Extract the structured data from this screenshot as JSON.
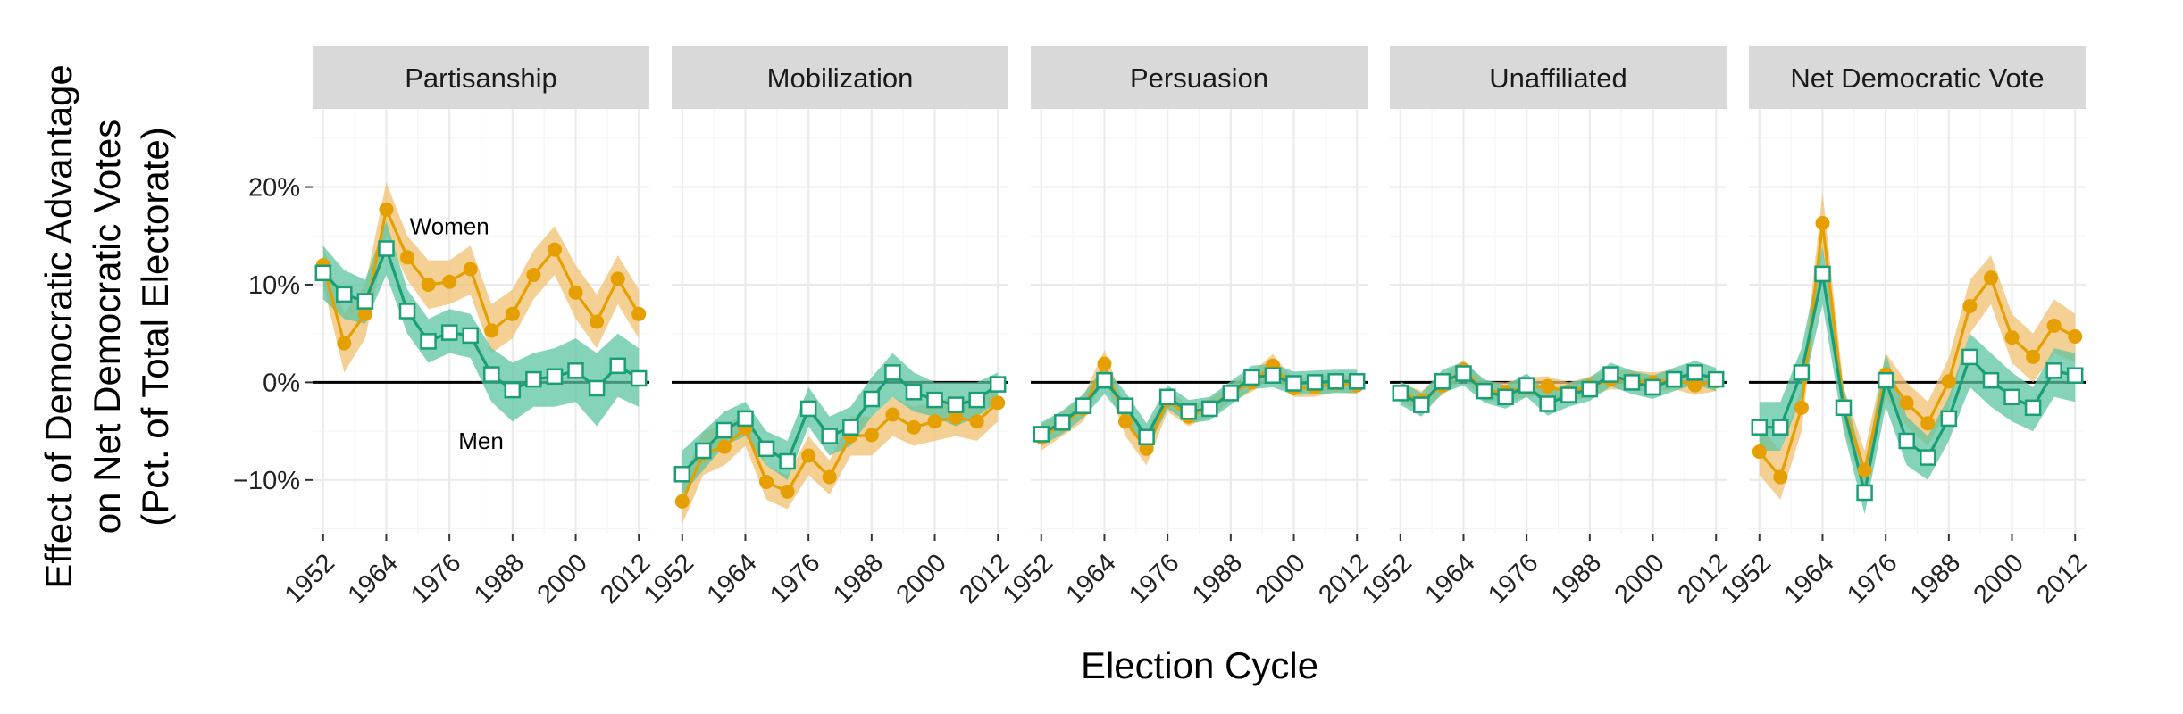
{
  "chart_data": {
    "type": "line",
    "xlabel": "Election Cycle",
    "ylabel_lines": [
      "Effect of Democratic Advantage",
      "on Net Democratic Votes",
      "(Pct. of Total Electorate)"
    ],
    "x_ticks": [
      1952,
      1964,
      1976,
      1988,
      2000,
      2012
    ],
    "x_tick_labels": [
      "1952",
      "1964",
      "1976",
      "1988",
      "2000",
      "2012"
    ],
    "y_ticks": [
      -10,
      0,
      10,
      20
    ],
    "y_tick_labels": [
      "−10%",
      "0%",
      "10%",
      "20%"
    ],
    "xlim": [
      1950,
      2014
    ],
    "ylim": [
      -15.5,
      28
    ],
    "years": [
      1952,
      1956,
      1960,
      1964,
      1968,
      1972,
      1976,
      1980,
      1984,
      1988,
      1992,
      1996,
      2000,
      2004,
      2008,
      2012
    ],
    "colors": {
      "Women": "#e69f00",
      "Men": "#1a9e77",
      "Women_band": "#f0c070",
      "Men_band": "#5cc4a2"
    },
    "panels": [
      {
        "title": "Partisanship",
        "annotations": [
          {
            "text": "Women",
            "x": 1976,
            "y": 16
          },
          {
            "text": "Men",
            "x": 1982,
            "y": -6
          }
        ],
        "series": [
          {
            "name": "Women",
            "values": [
              12,
              4,
              7,
              17.7,
              12.8,
              10,
              10.3,
              11.6,
              5.3,
              7,
              11,
              13.6,
              9.2,
              6.2,
              10.6,
              7
            ],
            "lower": [
              10,
              1,
              4.5,
              15,
              10.5,
              7.5,
              8,
              9,
              3,
              4.5,
              8.5,
              11,
              6.5,
              3.5,
              8,
              4.5
            ],
            "upper": [
              14,
              7,
              10,
              20.5,
              15,
              12.5,
              12.5,
              14,
              8,
              9.5,
              13.5,
              16,
              12,
              9,
              13,
              9.5
            ]
          },
          {
            "name": "Men",
            "values": [
              11.2,
              9,
              8.3,
              13.7,
              7.3,
              4.2,
              5.1,
              4.8,
              0.8,
              -0.8,
              0.3,
              0.6,
              1.2,
              -0.6,
              1.7,
              0.4
            ],
            "lower": [
              8.5,
              6.5,
              6,
              11,
              5,
              2,
              3,
              2.5,
              -2,
              -4,
              -2.5,
              -2.5,
              -2,
              -4.5,
              -1.5,
              -2.5
            ],
            "upper": [
              14,
              11.5,
              10.5,
              16.5,
              9.5,
              6.5,
              7.5,
              7,
              3.5,
              2,
              3,
              3.5,
              4.5,
              3,
              5,
              3.5
            ]
          }
        ]
      },
      {
        "title": "Mobilization",
        "annotations": [],
        "series": [
          {
            "name": "Women",
            "values": [
              -12.2,
              -7.3,
              -6.6,
              -4.7,
              -10.2,
              -11.2,
              -7.5,
              -9.7,
              -5.5,
              -5.4,
              -3.3,
              -4.6,
              -4,
              -3.6,
              -4,
              -2.1
            ],
            "lower": [
              -14.5,
              -9.5,
              -8.5,
              -6.5,
              -12,
              -13,
              -9.5,
              -11.5,
              -7.5,
              -7.5,
              -5.5,
              -6.5,
              -6,
              -5.5,
              -6,
              -4
            ],
            "upper": [
              -10,
              -5,
              -4.5,
              -3,
              -8.5,
              -9.5,
              -5.5,
              -8,
              -3.5,
              -3.5,
              -1.5,
              -2.5,
              -2,
              -1.5,
              -2,
              -0.5
            ]
          },
          {
            "name": "Men",
            "values": [
              -9.4,
              -7,
              -4.9,
              -3.7,
              -6.8,
              -8.1,
              -2.7,
              -5.5,
              -4.6,
              -1.7,
              1,
              -1,
              -1.8,
              -2.3,
              -1.8,
              -0.2
            ],
            "lower": [
              -11.5,
              -9,
              -6.5,
              -5.5,
              -8.5,
              -10,
              -4.5,
              -7.5,
              -6.5,
              -3.5,
              -1.5,
              -3,
              -3.5,
              -4.5,
              -3.5,
              -2
            ],
            "upper": [
              -7,
              -5,
              -3,
              -2,
              -5,
              -6,
              -0.5,
              -3.5,
              -2.5,
              0.5,
              3,
              1,
              0,
              0,
              0,
              1
            ]
          }
        ]
      },
      {
        "title": "Persuasion",
        "annotations": [],
        "series": [
          {
            "name": "Women",
            "values": [
              -5.6,
              -4.3,
              -2.7,
              1.9,
              -4,
              -6.8,
              -1.8,
              -3.5,
              -2.6,
              -1.1,
              0,
              1.7,
              -0.6,
              -0.5,
              -0.1,
              -0.3
            ],
            "lower": [
              -7,
              -5.5,
              -4,
              0.5,
              -5.5,
              -8.5,
              -3,
              -4.5,
              -3.5,
              -2,
              -1,
              0.5,
              -1.5,
              -1.5,
              -1,
              -1.2
            ],
            "upper": [
              -4.3,
              -3.1,
              -1.4,
              3.3,
              -2.5,
              -5.1,
              -0.6,
              -2.5,
              -1.7,
              -0.2,
              1,
              2.9,
              0.3,
              0.5,
              0.8,
              0.6
            ]
          },
          {
            "name": "Men",
            "values": [
              -5.3,
              -4.1,
              -2.4,
              0.2,
              -2.4,
              -5.6,
              -1.5,
              -3,
              -2.7,
              -1.1,
              0.5,
              0.7,
              -0.1,
              0,
              0.1,
              0.1
            ],
            "lower": [
              -6.5,
              -5.3,
              -3.6,
              -1.2,
              -3.8,
              -7,
              -2.7,
              -4.2,
              -3.9,
              -2.3,
              -0.7,
              -0.5,
              -1.3,
              -1.2,
              -1.1,
              -1.1
            ],
            "upper": [
              -4.1,
              -2.9,
              -1.2,
              1.6,
              -1,
              -4.2,
              -0.3,
              -1.8,
              -1.5,
              0.1,
              1.7,
              1.9,
              1.1,
              1.2,
              1.3,
              1.3
            ]
          }
        ]
      },
      {
        "title": "Unaffiliated",
        "annotations": [],
        "series": [
          {
            "name": "Women",
            "values": [
              -1,
              -1.9,
              -0.3,
              1.3,
              -0.9,
              -1,
              -0.5,
              -0.4,
              -1,
              -0.4,
              0.3,
              0.2,
              0,
              0.3,
              -0.3,
              0.1
            ],
            "lower": [
              -2,
              -2.9,
              -1.3,
              0.3,
              -1.9,
              -2,
              -1.5,
              -1.4,
              -2,
              -1.4,
              -0.7,
              -0.8,
              -1,
              -0.7,
              -1.3,
              -0.9
            ],
            "upper": [
              0,
              -0.9,
              0.7,
              2.3,
              0.1,
              0,
              0.5,
              0.6,
              0,
              0.6,
              1.3,
              1.2,
              1,
              1.3,
              0.7,
              1.1
            ]
          },
          {
            "name": "Men",
            "values": [
              -1.1,
              -2.3,
              0.1,
              0.9,
              -0.9,
              -1.5,
              -0.3,
              -2.2,
              -1.3,
              -0.7,
              0.8,
              0,
              -0.5,
              0.3,
              1,
              0.3
            ],
            "lower": [
              -2.3,
              -3.5,
              -1.1,
              -0.3,
              -2.1,
              -2.7,
              -1.5,
              -3.4,
              -2.5,
              -1.9,
              -0.4,
              -1.2,
              -1.7,
              -0.9,
              -0.2,
              -0.9
            ],
            "upper": [
              0.1,
              -1.1,
              1.3,
              2.1,
              0.3,
              -0.3,
              0.9,
              -1,
              -0.1,
              0.5,
              2,
              1.2,
              0.7,
              1.5,
              2.2,
              1.5
            ]
          }
        ]
      },
      {
        "title": "Net Democratic Vote",
        "annotations": [],
        "series": [
          {
            "name": "Women",
            "values": [
              -7.1,
              -9.7,
              -2.6,
              16.3,
              -2.4,
              -9,
              0.8,
              -2.1,
              -4.2,
              0.1,
              7.8,
              10.7,
              4.6,
              2.6,
              5.8,
              4.7
            ],
            "lower": [
              -9.5,
              -12,
              -5,
              13.5,
              -4.5,
              -11,
              -1.5,
              -4.5,
              -6.5,
              -2.5,
              5,
              8,
              2,
              0,
              3,
              2
            ],
            "upper": [
              -4.5,
              -7,
              -0.5,
              19.5,
              -0.5,
              -7,
              3,
              0,
              -2,
              2.5,
              10.5,
              13,
              7,
              5,
              8.5,
              7
            ]
          },
          {
            "name": "Men",
            "values": [
              -4.6,
              -4.6,
              1,
              11.1,
              -2.6,
              -11.3,
              0.2,
              -6,
              -7.7,
              -3.7,
              2.6,
              0.2,
              -1.5,
              -2.6,
              1.2,
              0.7
            ],
            "lower": [
              -7,
              -7,
              -1.5,
              8,
              -5,
              -13.5,
              -2.5,
              -8.5,
              -10,
              -6,
              -0.5,
              -2.5,
              -4,
              -5,
              -1.5,
              -2
            ],
            "upper": [
              -2,
              -2,
              3.5,
              14,
              -0.5,
              -9,
              3,
              -3.5,
              -5.5,
              -1.5,
              5,
              3,
              1,
              -0.5,
              3.5,
              3
            ]
          }
        ]
      }
    ]
  }
}
